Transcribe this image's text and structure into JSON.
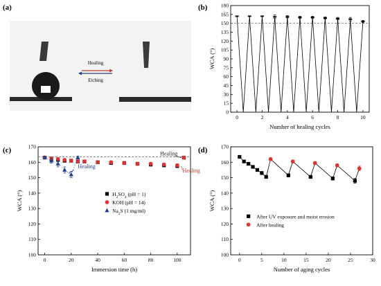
{
  "panels": {
    "a": {
      "label": "(a)",
      "arrow_top_label": "Healing",
      "arrow_bottom_label": "Etching",
      "colors": {
        "top_arrow": "#c0392b",
        "bottom_arrow": "#1f3f8f",
        "surface": "#2a2a2a",
        "bg": "#f2f2f2"
      }
    }
  },
  "chart_data": [
    {
      "panel": "(b)",
      "type": "line",
      "xlabel": "Number of healing cycles",
      "ylabel": "WCA (°)",
      "xlim": [
        -0.5,
        10.5
      ],
      "ylim": [
        0,
        180
      ],
      "xticks": [
        0,
        2,
        4,
        6,
        8,
        10
      ],
      "yticks": [
        0,
        15,
        30,
        45,
        60,
        75,
        90,
        105,
        120,
        135,
        150,
        165,
        180
      ],
      "reference_line": 150,
      "series": [
        {
          "x": [
            0,
            0.5,
            1,
            1.5,
            2,
            2.5,
            3,
            3.5,
            4,
            4.5,
            5,
            5.5,
            6,
            6.5,
            7,
            7.5,
            8,
            8.5,
            9,
            9.5,
            10
          ],
          "y": [
            162,
            0,
            162,
            0,
            162,
            0,
            161,
            0,
            161,
            0,
            160,
            0,
            160,
            0,
            159,
            0,
            158,
            0,
            157,
            0,
            153
          ],
          "err": [
            0,
            0,
            0,
            0,
            0,
            0,
            3,
            0,
            2,
            0,
            2,
            0,
            2,
            0,
            2,
            0,
            2,
            0,
            3,
            0,
            2
          ],
          "color": "#000000"
        }
      ]
    },
    {
      "panel": "(c)",
      "type": "scatter",
      "xlabel": "Immersion time (h)",
      "ylabel": "WCA (°)",
      "xlim": [
        -5,
        110
      ],
      "ylim": [
        100,
        170
      ],
      "xticks": [
        0,
        20,
        40,
        60,
        80,
        100
      ],
      "yticks": [
        100,
        110,
        120,
        130,
        140,
        150,
        160,
        170
      ],
      "reference_line": 163.5,
      "annotations": [
        {
          "text": "Healing",
          "x": 25,
          "y": 156,
          "color": "#1f3f8f"
        },
        {
          "text": "Healing",
          "x": 87,
          "y": 164.5,
          "color": "#222222"
        },
        {
          "text": "Healing",
          "x": 104,
          "y": 153.5,
          "color": "#c0392b"
        }
      ],
      "series": [
        {
          "name": "H2SO4 (pH = 1)",
          "marker": "square",
          "color": "#000000",
          "x": [
            0,
            5,
            10,
            15,
            20,
            25,
            30,
            40,
            50,
            60,
            70,
            80,
            90,
            100,
            105
          ],
          "y": [
            163,
            162,
            161.5,
            161,
            161,
            160.5,
            160.5,
            160,
            159.5,
            159.5,
            159,
            158.5,
            158,
            157.5,
            163
          ],
          "err": [
            0.5,
            1,
            1,
            1,
            1,
            1,
            1,
            1,
            1,
            1,
            1,
            1,
            1,
            1,
            1
          ]
        },
        {
          "name": "KOH (pH = 14)",
          "marker": "circle",
          "color": "#e03030",
          "x": [
            0,
            5,
            10,
            15,
            20,
            25,
            30,
            40,
            50,
            60,
            70,
            80,
            90,
            100,
            105
          ],
          "y": [
            163,
            162.5,
            162,
            161.5,
            161,
            160.5,
            160.5,
            160,
            160,
            159.5,
            159,
            159,
            158.5,
            158,
            163
          ],
          "err": [
            0.5,
            1,
            1,
            1,
            1,
            1,
            1,
            1,
            1,
            1,
            1,
            1,
            1,
            1,
            1
          ]
        },
        {
          "name": "Na2S (1 mg/ml)",
          "marker": "triangle",
          "color": "#1f3f8f",
          "x": [
            0,
            5,
            10,
            15,
            20,
            25
          ],
          "y": [
            163,
            161,
            159,
            155,
            152,
            163
          ],
          "err": [
            0.5,
            1.5,
            2,
            2,
            2,
            1
          ]
        }
      ],
      "legend": [
        "H2SO4 (pH = 1)",
        "KOH (pH = 14)",
        "Na2S (1 mg/ml)"
      ],
      "legend_placement": "center"
    },
    {
      "panel": "(d)",
      "type": "line",
      "xlabel": "Number of aging cycles",
      "ylabel": "WCA (°)",
      "xlim": [
        -2,
        30
      ],
      "ylim": [
        100,
        170
      ],
      "xticks": [
        0,
        5,
        10,
        15,
        20,
        25,
        30
      ],
      "yticks": [
        100,
        110,
        120,
        130,
        140,
        150,
        160,
        170
      ],
      "legend": [
        "After UV exposure and moist erosion",
        "After healing"
      ],
      "legend_placement": "lower-center",
      "series": [
        {
          "name": "After UV exposure and moist erosion",
          "marker": "square",
          "color": "#000000",
          "x": [
            0,
            1,
            2,
            3,
            4,
            5,
            6,
            11,
            16,
            21,
            26
          ],
          "y": [
            163.5,
            160.5,
            159,
            157,
            155,
            153,
            150.5,
            151.5,
            150.5,
            149.5,
            148
          ],
          "err": [
            0.5,
            0.5,
            0.5,
            0.8,
            0.8,
            1,
            1,
            1,
            1,
            1,
            1.5
          ]
        },
        {
          "name": "After healing",
          "marker": "circle",
          "color": "#e03030",
          "x": [
            7,
            12,
            17,
            22,
            27
          ],
          "y": [
            162,
            160.5,
            159.5,
            158,
            156
          ],
          "err": [
            1,
            1,
            1,
            1,
            1.5
          ]
        }
      ],
      "connections": [
        [
          6,
          7
        ],
        [
          7,
          11
        ],
        [
          11,
          12
        ],
        [
          12,
          16
        ],
        [
          16,
          17
        ],
        [
          17,
          21
        ],
        [
          21,
          22
        ],
        [
          22,
          26
        ],
        [
          26,
          27
        ]
      ]
    }
  ]
}
